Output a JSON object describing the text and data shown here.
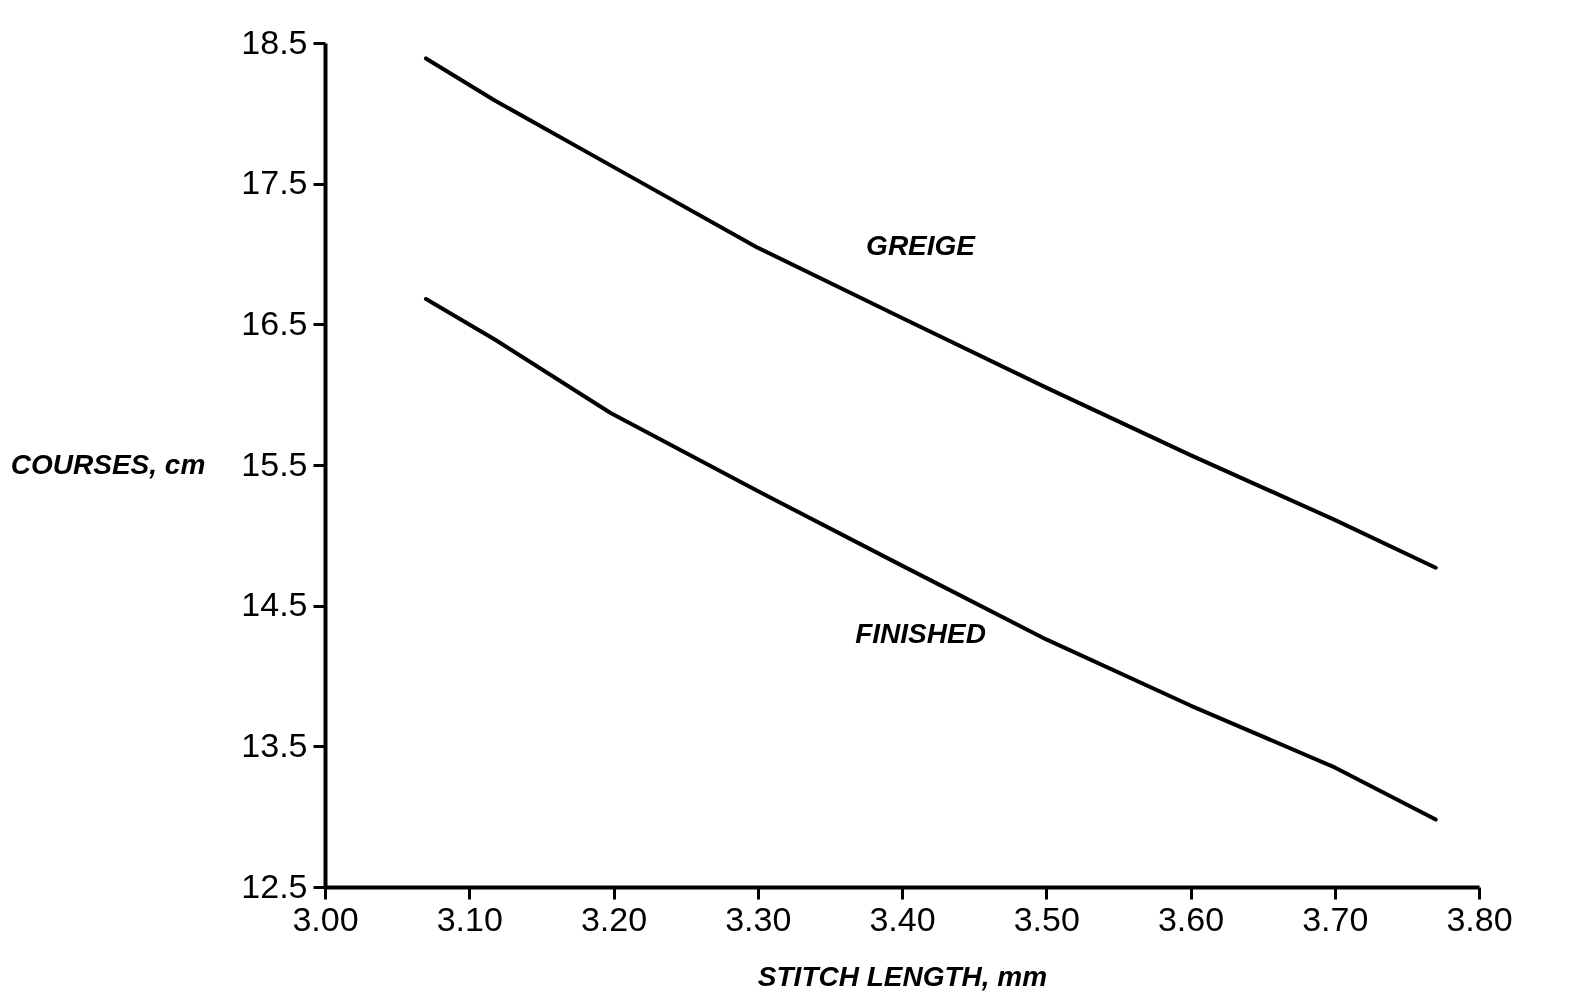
{
  "chart_data": {
    "type": "line",
    "xlabel": "STITCH LENGTH, mm",
    "ylabel": "COURSES, cm",
    "xlim": [
      3.0,
      3.8
    ],
    "xticks": [
      {
        "value": 3.0,
        "label": "3.00"
      },
      {
        "value": 3.1,
        "label": "3.10"
      },
      {
        "value": 3.2,
        "label": "3.20"
      },
      {
        "value": 3.3,
        "label": "3.30"
      },
      {
        "value": 3.4,
        "label": "3.40"
      },
      {
        "value": 3.5,
        "label": "3.50"
      },
      {
        "value": 3.6,
        "label": "3.60"
      },
      {
        "value": 3.7,
        "label": "3.70"
      },
      {
        "value": 3.8,
        "label": "3.80"
      }
    ],
    "ylim": [
      12.5,
      18.5
    ],
    "yticks": [
      12.5,
      13.5,
      14.5,
      15.5,
      16.5,
      17.5,
      18.5
    ],
    "grid": false,
    "legend": false,
    "marker": "none",
    "line_style": "solid",
    "series": [
      {
        "name": "GREIGE",
        "color": "#000000",
        "x": [
          3.07,
          3.118,
          3.198,
          3.299,
          3.399,
          3.5,
          3.6,
          3.7,
          3.77
        ],
        "values": [
          18.39,
          18.09,
          17.63,
          17.05,
          16.55,
          16.05,
          15.57,
          15.11,
          14.77
        ]
      },
      {
        "name": "FINISHED",
        "color": "#000000",
        "x": [
          3.07,
          3.118,
          3.198,
          3.299,
          3.399,
          3.5,
          3.6,
          3.7,
          3.77
        ],
        "values": [
          16.68,
          16.39,
          15.87,
          15.32,
          14.79,
          14.26,
          13.79,
          13.35,
          12.98
        ]
      }
    ]
  }
}
